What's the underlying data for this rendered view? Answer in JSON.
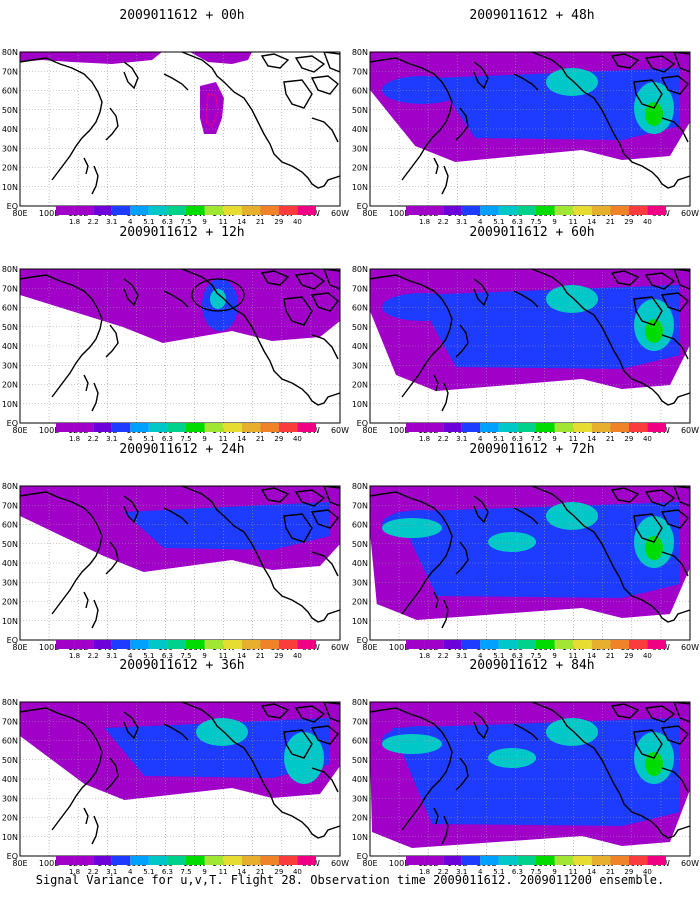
{
  "caption": "Signal Variance for u,v,T. Flight 28. Observation time 2009011612. 2009011200 ensemble.",
  "panels": [
    {
      "title": "2009011612 + 00h",
      "intensity": 0
    },
    {
      "title": "2009011612 + 12h",
      "intensity": 1
    },
    {
      "title": "2009011612 + 24h",
      "intensity": 2
    },
    {
      "title": "2009011612 + 36h",
      "intensity": 3
    },
    {
      "title": "2009011612 + 48h",
      "intensity": 4
    },
    {
      "title": "2009011612 + 60h",
      "intensity": 5
    },
    {
      "title": "2009011612 + 72h",
      "intensity": 6
    },
    {
      "title": "2009011612 + 84h",
      "intensity": 7
    }
  ],
  "axes": {
    "lon_labels": [
      "80E",
      "100E",
      "120E",
      "140E",
      "160E",
      "180",
      "160W",
      "140W",
      "120W",
      "100W",
      "80W",
      "60W"
    ],
    "lat_labels": [
      "80N",
      "70N",
      "60N",
      "50N",
      "40N",
      "30N",
      "20N",
      "10N",
      "EQ"
    ]
  },
  "colorbar": {
    "labels": [
      "1.8",
      "2.2",
      "3.1",
      "4",
      "5.1",
      "6.3",
      "7.5",
      "9",
      "11",
      "14",
      "21",
      "29",
      "40"
    ],
    "colors": [
      "#a000c8",
      "#6e00dc",
      "#1e3cff",
      "#00a0ff",
      "#00c8c8",
      "#00d28c",
      "#00dc00",
      "#a0e632",
      "#e6dc32",
      "#e6af2d",
      "#f08228",
      "#fa3c3c",
      "#f00082"
    ]
  },
  "shading": {
    "low": "#a000c8",
    "mid": "#1e3cff",
    "cyan": "#00c8c8",
    "green": "#00dc00",
    "magenta": "#f00082",
    "coast": "#000000"
  }
}
